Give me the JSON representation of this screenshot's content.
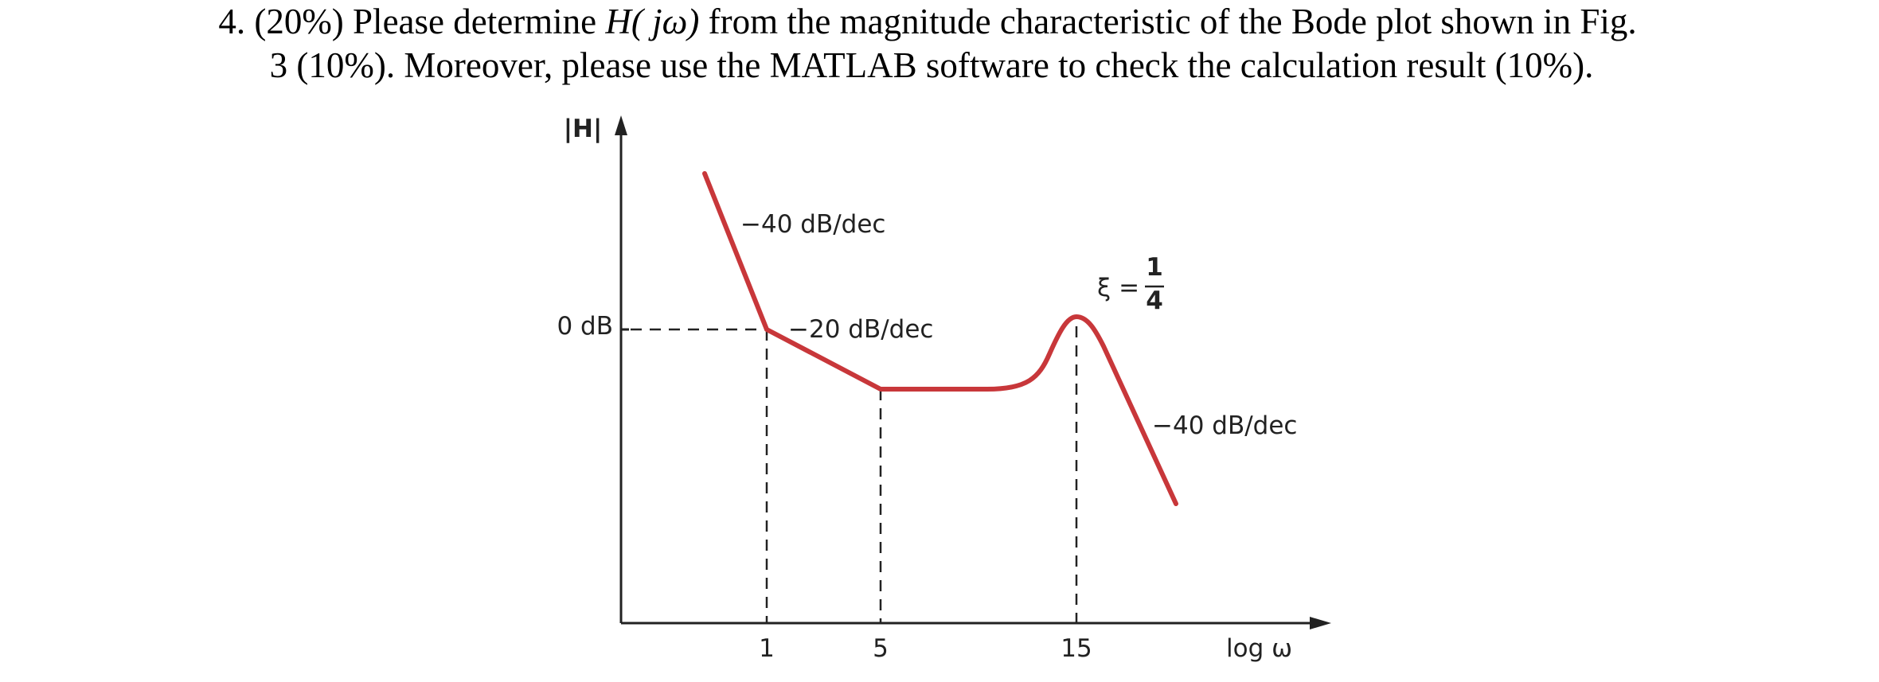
{
  "question": {
    "line1": [
      "4. (20%) Please determine ",
      "H( jω)",
      " from the magnitude characteristic of the Bode plot shown in Fig."
    ],
    "line2": "3 (10%). Moreover, please use the MATLAB software to check the calculation result (10%)."
  },
  "figure": {
    "y_axis_label": "|H|",
    "x_axis_label": "log ω",
    "zero_level_label": "0 dB",
    "slope_labels": [
      "−40 dB/dec",
      "−20 dB/dec",
      "−40 dB/dec"
    ],
    "damping": {
      "symbol": "ξ =",
      "numerator": "1",
      "denominator": "4"
    },
    "x_tick_labels": [
      "1",
      "5",
      "15"
    ]
  }
}
